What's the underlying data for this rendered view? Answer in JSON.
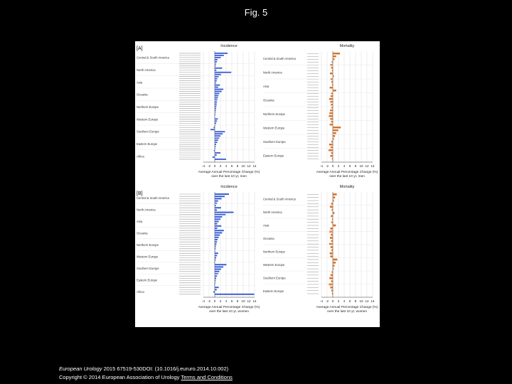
{
  "figure_title": "Fig. 5",
  "footer": {
    "journal": "European Urology",
    "citation": "2015 67519-530DOI: (10.1016/j.eururo.2014.10.002)",
    "copyright": "Copyright © 2014 European Association of Urology",
    "terms_link": "Terms and Conditions"
  },
  "colors": {
    "incidence": "#3a5fd8",
    "mortality": "#d9732a",
    "grid": "#d0d0d0",
    "axis": "#333333"
  },
  "chart_data": [
    {
      "type": "bar",
      "panel": "A",
      "title": "Incidence",
      "xlabel": "Average Annual Percentage Change (%) over the last 10 yr, men",
      "xlim": [
        -4,
        14
      ],
      "xticks": [
        -4,
        -2,
        0,
        2,
        4,
        6,
        8,
        10,
        12,
        14
      ],
      "groups": [
        "Central & South America",
        "North America",
        "Asia",
        "Oceania",
        "Northern Europe",
        "Western Europe",
        "Southern Europe",
        "Eastern Europe",
        "Africa"
      ],
      "values": [
        4.5,
        3.2,
        2.1,
        1.0,
        0.8,
        0.5,
        0.3,
        2.6,
        0.6,
        5.8,
        2.2,
        1.4,
        0.9,
        0.7,
        0.4,
        1.8,
        1.2,
        3.0,
        2.4,
        1.6,
        1.3,
        1.1,
        0.9,
        0.8,
        0.7,
        0.6,
        0.5,
        0.4,
        0.3,
        0.2,
        -0.1,
        1.1,
        0.8,
        0.5,
        0.2,
        -0.4,
        -1.5,
        3.6,
        2.8,
        2.0,
        1.6,
        1.2,
        0.9,
        0.5,
        0.3,
        0.2,
        -0.3,
        2.0,
        0.7,
        -0.8,
        4.0
      ]
    },
    {
      "type": "bar",
      "panel": "A",
      "title": "Mortality",
      "xlabel": "Average Annual Percentage Change (%) over the last 10 yr, men",
      "xlim": [
        -4,
        14
      ],
      "xticks": [
        -4,
        -2,
        0,
        2,
        4,
        6,
        8,
        10,
        12,
        14
      ],
      "groups": [
        "Central & South America",
        "North America",
        "Asia",
        "Oceania",
        "Northern Europe",
        "Western Europe",
        "Southern Europe",
        "Eastern Europe"
      ],
      "values": [
        2.5,
        1.2,
        0.6,
        -0.4,
        -0.9,
        -0.6,
        -0.3,
        -1.0,
        0.4,
        -0.8,
        -0.5,
        -0.3,
        -1.1,
        1.2,
        -0.6,
        -0.8,
        -1.3,
        -0.9,
        -0.7,
        -0.5,
        -1.0,
        -1.2,
        -1.4,
        -0.9,
        -0.6,
        -1.1,
        2.8,
        1.9,
        1.2,
        0.8,
        0.4,
        -0.5,
        -1.3,
        -0.8,
        -1.5,
        -0.6,
        -0.9,
        -0.3
      ]
    },
    {
      "type": "bar",
      "panel": "B",
      "title": "Incidence",
      "xlabel": "Average Annual Percentage Change (%) over the last 10 yr, women",
      "xlim": [
        -4,
        14
      ],
      "xticks": [
        -4,
        -2,
        0,
        2,
        4,
        6,
        8,
        10,
        12,
        14
      ],
      "groups": [
        "Central & South America",
        "North America",
        "Asia",
        "Oceania",
        "Northern Europe",
        "Western Europe",
        "Southern Europe",
        "Eastern Europe",
        "Africa"
      ],
      "values": [
        5.0,
        3.5,
        2.4,
        1.2,
        0.8,
        0.4,
        2.2,
        0.8,
        6.6,
        3.8,
        2.6,
        2.0,
        1.4,
        0.9,
        2.3,
        0.9,
        3.2,
        2.6,
        1.8,
        1.4,
        1.0,
        0.8,
        0.6,
        0.4,
        0.3,
        0.2,
        1.2,
        0.8,
        0.5,
        0.3,
        -0.2,
        4.1,
        3.0,
        2.2,
        1.6,
        1.2,
        0.8,
        0.5,
        0.3,
        0.2,
        -0.2,
        1.4,
        0.7,
        -0.5,
        13.9
      ]
    },
    {
      "type": "bar",
      "panel": "B",
      "title": "Mortality",
      "xlabel": "Average Annual Percentage Change (%) over the last 10 yr, women",
      "xlim": [
        -4,
        14
      ],
      "xticks": [
        -4,
        -2,
        0,
        2,
        4,
        6,
        8,
        10,
        12,
        14
      ],
      "groups": [
        "Central & South America",
        "North America",
        "Asia",
        "Oceania",
        "Northern Europe",
        "Western Europe",
        "Southern Europe",
        "Eastern Europe"
      ],
      "values": [
        1.4,
        0.8,
        0.4,
        -0.6,
        -1.0,
        -0.4,
        0.6,
        -0.7,
        -0.3,
        -0.5,
        1.1,
        -0.9,
        -1.2,
        -0.7,
        -1.0,
        -0.6,
        -1.3,
        -0.8,
        -0.5,
        -1.1,
        -0.9,
        1.6,
        1.0,
        0.6,
        0.3,
        -0.4,
        -0.8,
        -1.2,
        -0.6,
        -1.4,
        -0.9,
        -0.5,
        -0.3
      ]
    }
  ]
}
